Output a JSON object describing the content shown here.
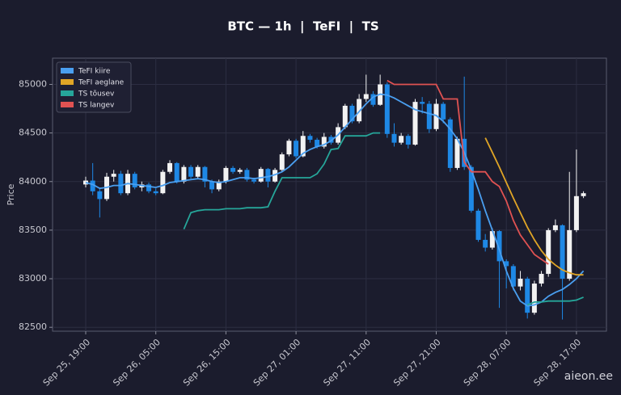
{
  "chart_data": {
    "type": "candlestick",
    "title": "BTC — 1h  |  TeFI  |  TS",
    "y_label": "Price",
    "watermark": "aieon.ee",
    "categories": [
      "Sep 25, 19:00",
      null,
      null,
      null,
      null,
      null,
      null,
      null,
      null,
      null,
      "Sep 26, 05:00",
      null,
      null,
      null,
      null,
      null,
      null,
      null,
      null,
      null,
      "Sep 26, 15:00",
      null,
      null,
      null,
      null,
      null,
      null,
      null,
      null,
      null,
      "Sep 27, 01:00",
      null,
      null,
      null,
      null,
      null,
      null,
      null,
      null,
      null,
      "Sep 27, 11:00",
      null,
      null,
      null,
      null,
      null,
      null,
      null,
      null,
      null,
      "Sep 27, 21:00",
      null,
      null,
      null,
      null,
      null,
      null,
      null,
      null,
      null,
      "Sep 28, 07:00",
      null,
      null,
      null,
      null,
      null,
      null,
      null,
      null,
      null,
      "Sep 28, 17:00",
      null
    ],
    "open": [
      83970,
      84010,
      83900,
      83820,
      84050,
      84080,
      83880,
      84080,
      83940,
      83970,
      83900,
      83880,
      84100,
      84190,
      84000,
      84150,
      84050,
      84150,
      84000,
      83920,
      84000,
      84140,
      84100,
      84120,
      84020,
      84000,
      84130,
      84000,
      84120,
      84280,
      84420,
      84260,
      84470,
      84430,
      84360,
      84460,
      84400,
      84560,
      84780,
      84620,
      84850,
      84900,
      84790,
      85000,
      84490,
      84400,
      84470,
      84380,
      84820,
      84800,
      84540,
      84800,
      84640,
      84140,
      84440,
      84150,
      83700,
      83400,
      83320,
      83490,
      83180,
      83130,
      82920,
      83000,
      82650,
      82950,
      83050,
      83500,
      83550,
      83000,
      83500,
      83850
    ],
    "high": [
      84050,
      84190,
      83940,
      84090,
      84120,
      84110,
      84120,
      84100,
      84000,
      83990,
      83930,
      84120,
      84220,
      84200,
      84170,
      84170,
      84170,
      84160,
      84020,
      84020,
      84160,
      84160,
      84140,
      84140,
      84040,
      84150,
      84140,
      84140,
      84300,
      84440,
      84440,
      84520,
      84490,
      84450,
      84500,
      84480,
      84600,
      84800,
      84800,
      84900,
      85100,
      84930,
      85100,
      85020,
      84600,
      84500,
      84490,
      84850,
      84870,
      84830,
      84850,
      84820,
      84660,
      84460,
      85080,
      84170,
      83720,
      83460,
      83520,
      83500,
      83200,
      83150,
      83080,
      83020,
      82980,
      83080,
      83520,
      83610,
      83560,
      84100,
      84330,
      83900
    ],
    "low": [
      83940,
      83860,
      83630,
      83800,
      84000,
      83860,
      83860,
      83920,
      83900,
      83880,
      83860,
      83870,
      84080,
      83980,
      83980,
      84020,
      84030,
      83940,
      83880,
      83900,
      83980,
      84080,
      84080,
      84000,
      83980,
      83990,
      83940,
      83990,
      84100,
      84260,
      84240,
      84250,
      84400,
      84340,
      84340,
      84380,
      84380,
      84540,
      84600,
      84600,
      84820,
      84770,
      84780,
      84450,
      84360,
      84380,
      84340,
      84370,
      84700,
      84500,
      84520,
      84600,
      84100,
      84120,
      84120,
      83680,
      83380,
      83280,
      83300,
      82700,
      82900,
      82880,
      82880,
      82590,
      82630,
      82920,
      83020,
      83480,
      82580,
      82980,
      83480,
      83830
    ],
    "close": [
      84010,
      83900,
      83820,
      84050,
      84080,
      83880,
      84080,
      83940,
      83970,
      83900,
      83880,
      84100,
      84190,
      84000,
      84150,
      84050,
      84150,
      84000,
      83920,
      84000,
      84140,
      84100,
      84120,
      84020,
      84000,
      84130,
      84000,
      84120,
      84280,
      84420,
      84260,
      84470,
      84430,
      84360,
      84460,
      84400,
      84560,
      84780,
      84620,
      84850,
      84900,
      84790,
      85000,
      84490,
      84400,
      84470,
      84380,
      84820,
      84800,
      84540,
      84800,
      84640,
      84140,
      84440,
      84150,
      83700,
      83400,
      83320,
      83490,
      83180,
      83130,
      82920,
      83000,
      82650,
      82950,
      83050,
      83500,
      83550,
      83000,
      83500,
      83850,
      83880
    ],
    "up_color": "#f2f2f2",
    "down_color": "#1e88e5",
    "series": [
      {
        "name": "TeFI kiire",
        "color": "#4a9ff0",
        "values": [
          83990,
          83970,
          83930,
          83940,
          83960,
          83960,
          83980,
          83970,
          83960,
          83950,
          83940,
          83960,
          83990,
          84000,
          84010,
          84020,
          84030,
          84020,
          84000,
          83990,
          84000,
          84020,
          84040,
          84040,
          84030,
          84040,
          84050,
          84070,
          84100,
          84150,
          84220,
          84290,
          84330,
          84360,
          84380,
          84420,
          84480,
          84560,
          84640,
          84720,
          84800,
          84870,
          84900,
          84890,
          84860,
          84820,
          84780,
          84740,
          84720,
          84700,
          84680,
          84620,
          84540,
          84440,
          84300,
          84120,
          83920,
          83700,
          83500,
          83300,
          83080,
          82900,
          82770,
          82720,
          82730,
          82760,
          82820,
          82860,
          82890,
          82940,
          83000,
          83080
        ]
      },
      {
        "name": "TeFI aeglane",
        "color": "#e0a526",
        "values": [
          null,
          null,
          null,
          null,
          null,
          null,
          null,
          null,
          null,
          null,
          null,
          null,
          null,
          null,
          null,
          null,
          null,
          null,
          null,
          null,
          null,
          null,
          null,
          null,
          null,
          null,
          null,
          null,
          null,
          null,
          null,
          null,
          null,
          null,
          null,
          null,
          null,
          null,
          null,
          null,
          null,
          null,
          null,
          null,
          null,
          null,
          null,
          null,
          null,
          null,
          null,
          null,
          null,
          null,
          null,
          null,
          null,
          84450,
          84300,
          84150,
          83990,
          83830,
          83680,
          83530,
          83400,
          83290,
          83200,
          83140,
          83090,
          83060,
          83040,
          83040
        ]
      },
      {
        "name": "TS tõusev",
        "color": "#26a69a",
        "values": [
          null,
          null,
          null,
          null,
          null,
          null,
          null,
          null,
          null,
          null,
          null,
          null,
          null,
          null,
          83510,
          83680,
          83700,
          83710,
          83710,
          83710,
          83720,
          83720,
          83720,
          83730,
          83730,
          83730,
          83740,
          83900,
          84040,
          84040,
          84040,
          84040,
          84040,
          84080,
          84180,
          84330,
          84340,
          84470,
          84470,
          84470,
          84470,
          84500,
          84500,
          null,
          null,
          null,
          null,
          null,
          null,
          null,
          null,
          null,
          null,
          null,
          null,
          null,
          null,
          null,
          null,
          null,
          null,
          null,
          null,
          82730,
          82760,
          82760,
          82770,
          82770,
          82770,
          82770,
          82780,
          82810
        ]
      },
      {
        "name": "TS langev",
        "color": "#e05252",
        "values": [
          null,
          null,
          null,
          null,
          null,
          null,
          null,
          null,
          null,
          null,
          null,
          null,
          null,
          null,
          null,
          null,
          null,
          null,
          null,
          null,
          null,
          null,
          null,
          null,
          null,
          null,
          null,
          null,
          null,
          null,
          null,
          null,
          null,
          null,
          null,
          null,
          null,
          null,
          null,
          null,
          null,
          null,
          null,
          85040,
          85000,
          85000,
          85000,
          85000,
          85000,
          85000,
          85000,
          84850,
          84850,
          84850,
          84200,
          84100,
          84100,
          84100,
          84000,
          83950,
          83800,
          83600,
          83450,
          83350,
          83250,
          83200,
          83150,
          null,
          null,
          null,
          null,
          null
        ]
      }
    ],
    "ylim": [
      82460,
      85270
    ],
    "yticks": [
      82500,
      83000,
      83500,
      84000,
      84500,
      85000
    ],
    "grid": true,
    "legend": "upper left"
  }
}
